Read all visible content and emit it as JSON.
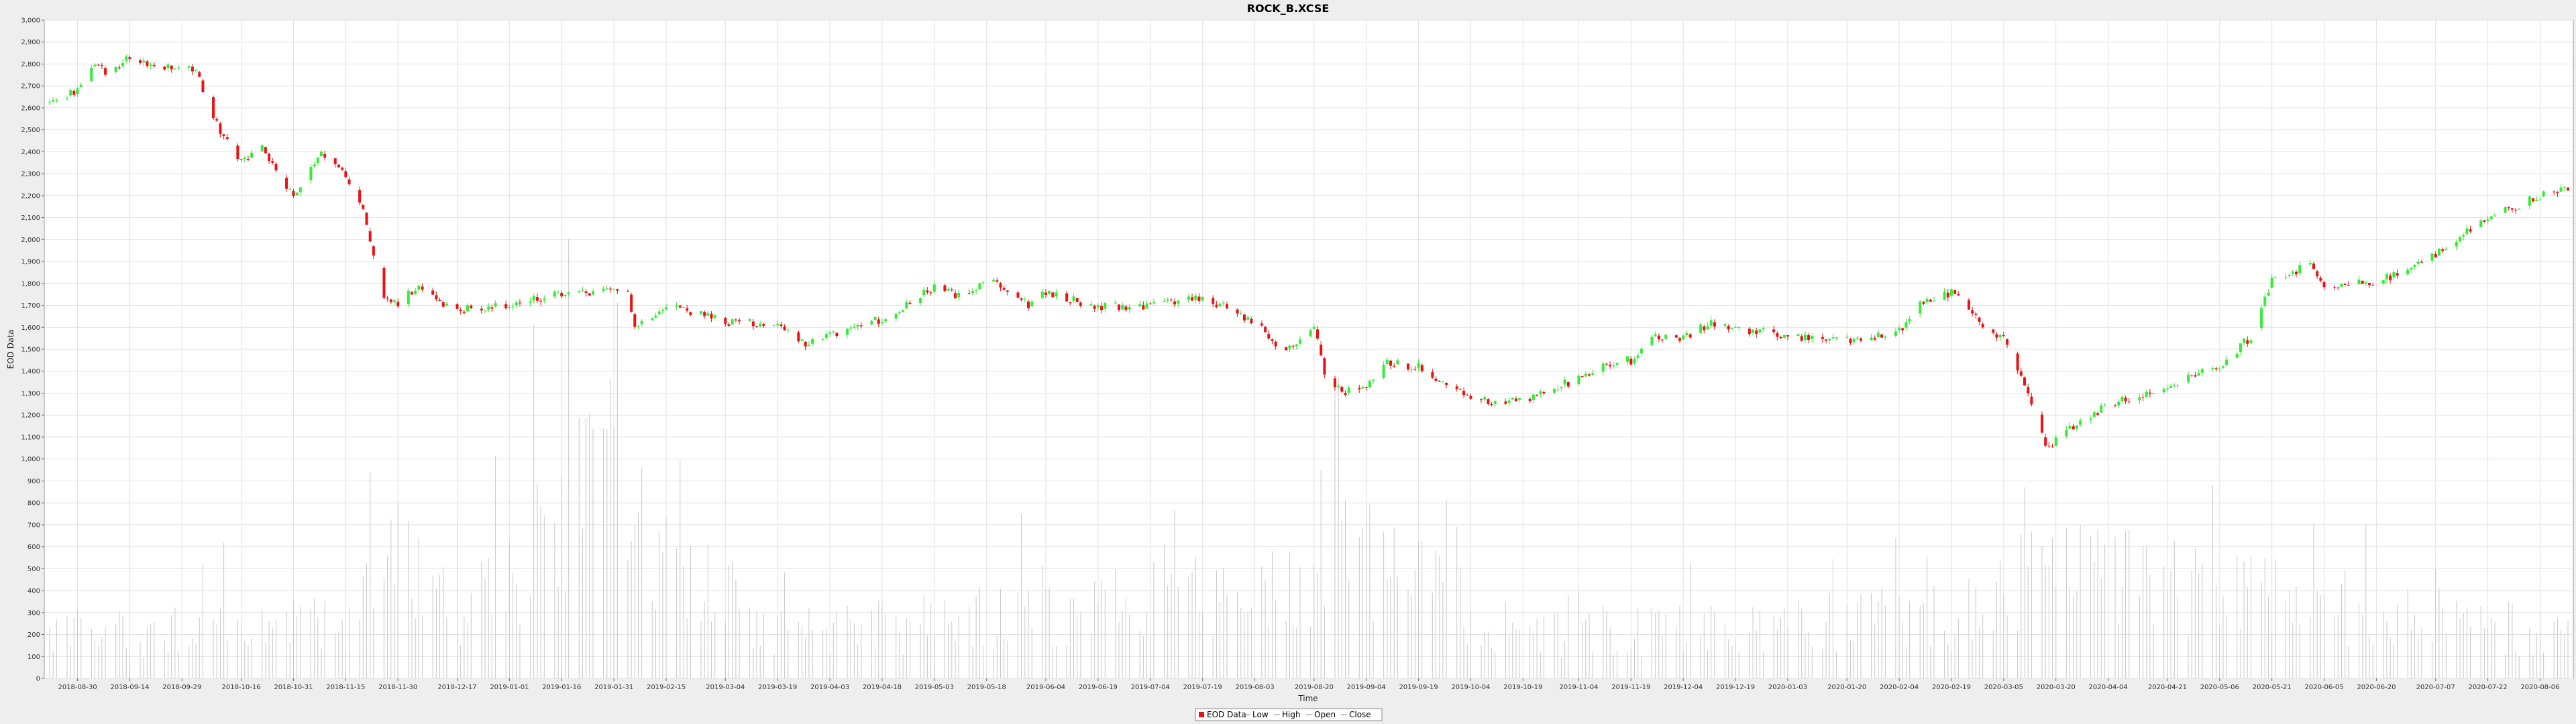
{
  "chart_data": {
    "type": "candlestick",
    "title": "ROCK_B.XCSE",
    "xlabel": "Time",
    "ylabel": "EOD Data",
    "ylim": [
      0,
      3000
    ],
    "yticks": [
      0,
      100,
      200,
      300,
      400,
      500,
      600,
      700,
      800,
      900,
      1000,
      1100,
      1200,
      1300,
      1400,
      1500,
      1600,
      1700,
      1800,
      1900,
      2000,
      2100,
      2200,
      2300,
      2400,
      2500,
      2600,
      2700,
      2800,
      2900,
      3000
    ],
    "ytick_labels": [
      "0",
      "100",
      "200",
      "300",
      "400",
      "500",
      "600",
      "700",
      "800",
      "900",
      "1,000",
      "1,100",
      "1,200",
      "1,300",
      "1,400",
      "1,500",
      "1,600",
      "1,700",
      "1,800",
      "1,900",
      "2,000",
      "2,100",
      "2,200",
      "2,300",
      "2,400",
      "2,500",
      "2,600",
      "2,700",
      "2,800",
      "2,900",
      "3,000"
    ],
    "x_start": "2018-08-22",
    "x_end": "2020-08-14",
    "xticks": [
      "2018-08-30",
      "2018-09-14",
      "2018-09-29",
      "2018-10-16",
      "2018-10-31",
      "2018-11-15",
      "2018-11-30",
      "2018-12-17",
      "2019-01-01",
      "2019-01-16",
      "2019-01-31",
      "2019-02-15",
      "2019-03-04",
      "2019-03-19",
      "2019-04-03",
      "2019-04-18",
      "2019-05-03",
      "2019-05-18",
      "2019-06-04",
      "2019-06-19",
      "2019-07-04",
      "2019-07-19",
      "2019-08-03",
      "2019-08-20",
      "2019-09-04",
      "2019-09-19",
      "2019-10-04",
      "2019-10-19",
      "2019-11-04",
      "2019-11-19",
      "2019-12-04",
      "2019-12-19",
      "2020-01-03",
      "2020-01-20",
      "2020-02-04",
      "2020-02-19",
      "2020-03-05",
      "2020-03-20",
      "2020-04-04",
      "2020-04-21",
      "2020-05-06",
      "2020-05-21",
      "2020-06-05",
      "2020-06-20",
      "2020-07-07",
      "2020-07-22",
      "2020-08-06"
    ],
    "price_anchors": [
      [
        "2018-08-22",
        2620
      ],
      [
        "2018-08-30",
        2680
      ],
      [
        "2018-09-04",
        2800
      ],
      [
        "2018-09-08",
        2760
      ],
      [
        "2018-09-14",
        2840
      ],
      [
        "2018-09-20",
        2790
      ],
      [
        "2018-09-29",
        2770
      ],
      [
        "2018-10-03",
        2780
      ],
      [
        "2018-10-08",
        2550
      ],
      [
        "2018-10-16",
        2350
      ],
      [
        "2018-10-22",
        2420
      ],
      [
        "2018-10-31",
        2200
      ],
      [
        "2018-11-08",
        2380
      ],
      [
        "2018-11-15",
        2300
      ],
      [
        "2018-11-20",
        2150
      ],
      [
        "2018-11-25",
        1750
      ],
      [
        "2018-11-30",
        1700
      ],
      [
        "2018-12-05",
        1780
      ],
      [
        "2018-12-17",
        1680
      ],
      [
        "2019-01-01",
        1700
      ],
      [
        "2019-01-16",
        1750
      ],
      [
        "2019-01-31",
        1760
      ],
      [
        "2019-02-04",
        1780
      ],
      [
        "2019-02-06",
        1600
      ],
      [
        "2019-02-15",
        1710
      ],
      [
        "2019-03-04",
        1620
      ],
      [
        "2019-03-19",
        1620
      ],
      [
        "2019-03-25",
        1520
      ],
      [
        "2019-04-03",
        1570
      ],
      [
        "2019-04-18",
        1640
      ],
      [
        "2019-05-03",
        1780
      ],
      [
        "2019-05-10",
        1740
      ],
      [
        "2019-05-18",
        1820
      ],
      [
        "2019-05-30",
        1700
      ],
      [
        "2019-06-04",
        1760
      ],
      [
        "2019-06-19",
        1690
      ],
      [
        "2019-07-04",
        1700
      ],
      [
        "2019-07-19",
        1740
      ],
      [
        "2019-08-03",
        1620
      ],
      [
        "2019-08-12",
        1480
      ],
      [
        "2019-08-20",
        1620
      ],
      [
        "2019-08-23",
        1400
      ],
      [
        "2019-08-28",
        1300
      ],
      [
        "2019-09-04",
        1340
      ],
      [
        "2019-09-10",
        1440
      ],
      [
        "2019-09-19",
        1420
      ],
      [
        "2019-10-04",
        1270
      ],
      [
        "2019-10-19",
        1260
      ],
      [
        "2019-11-04",
        1370
      ],
      [
        "2019-11-12",
        1440
      ],
      [
        "2019-11-19",
        1450
      ],
      [
        "2019-11-25",
        1560
      ],
      [
        "2019-12-04",
        1550
      ],
      [
        "2019-12-12",
        1620
      ],
      [
        "2019-12-19",
        1600
      ],
      [
        "2020-01-03",
        1560
      ],
      [
        "2020-01-20",
        1540
      ],
      [
        "2020-02-04",
        1580
      ],
      [
        "2020-02-10",
        1700
      ],
      [
        "2020-02-19",
        1760
      ],
      [
        "2020-02-24",
        1680
      ],
      [
        "2020-03-01",
        1580
      ],
      [
        "2020-03-05",
        1560
      ],
      [
        "2020-03-12",
        1280
      ],
      [
        "2020-03-18",
        1040
      ],
      [
        "2020-03-20",
        1100
      ],
      [
        "2020-04-04",
        1250
      ],
      [
        "2020-04-21",
        1330
      ],
      [
        "2020-05-06",
        1420
      ],
      [
        "2020-05-15",
        1560
      ],
      [
        "2020-05-21",
        1820
      ],
      [
        "2020-06-01",
        1880
      ],
      [
        "2020-06-05",
        1780
      ],
      [
        "2020-06-12",
        1800
      ],
      [
        "2020-06-20",
        1800
      ],
      [
        "2020-07-07",
        1930
      ],
      [
        "2020-07-22",
        2100
      ],
      [
        "2020-08-06",
        2200
      ],
      [
        "2020-08-14",
        2240
      ]
    ],
    "volume_anchors": [
      [
        "2018-08-22",
        250
      ],
      [
        "2018-11-15",
        300
      ],
      [
        "2018-11-20",
        850
      ],
      [
        "2018-12-17",
        350
      ],
      [
        "2019-02-01",
        1200
      ],
      [
        "2019-02-04",
        900
      ],
      [
        "2019-03-19",
        250
      ],
      [
        "2019-08-20",
        500
      ],
      [
        "2019-08-25",
        750
      ],
      [
        "2019-10-19",
        250
      ],
      [
        "2020-02-19",
        350
      ],
      [
        "2020-03-05",
        500
      ],
      [
        "2020-03-20",
        600
      ],
      [
        "2020-05-21",
        450
      ],
      [
        "2020-08-14",
        250
      ]
    ],
    "series": [
      {
        "name": "EOD Data"
      },
      {
        "name": "Low"
      },
      {
        "name": "High"
      },
      {
        "name": "Open"
      },
      {
        "name": "Close"
      }
    ],
    "colors": {
      "up": "#33ee33",
      "down": "#ee1111",
      "volume": "#c8c8c8",
      "grid": "#e2e2e2",
      "plot_bg": "#ffffff",
      "page_bg": "#eeeeee",
      "legend_swatch": "#ee1111"
    },
    "legend_position": "bottom-center",
    "grid": true
  }
}
